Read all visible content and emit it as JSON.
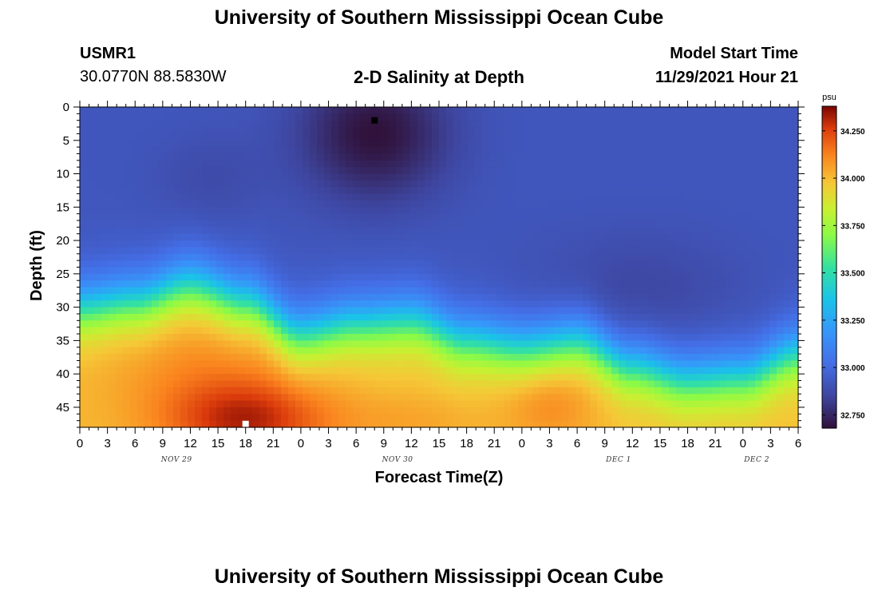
{
  "header": {
    "title": "University of Southern Mississippi Ocean Cube",
    "station_id": "USMR1",
    "station_coords": "30.0770N  88.5830W",
    "plot_title": "2-D Salinity at Depth",
    "model_start_label": "Model Start Time",
    "model_start_value": "11/29/2021 Hour 21"
  },
  "footer": {
    "title": "University of Southern Mississippi Ocean Cube"
  },
  "chart_data": {
    "type": "heatmap",
    "xlabel": "Forecast Time(Z)",
    "ylabel": "Depth (ft)",
    "x_tick_labels": [
      "0",
      "3",
      "6",
      "9",
      "12",
      "15",
      "18",
      "21",
      "0",
      "3",
      "6",
      "9",
      "12",
      "15",
      "18",
      "21",
      "0",
      "3",
      "6",
      "9",
      "12",
      "15",
      "18",
      "21",
      "0",
      "3",
      "6"
    ],
    "date_labels": [
      {
        "text": "NOV 29",
        "at_tick": 3.5
      },
      {
        "text": "NOV 30",
        "at_tick": 11.5
      },
      {
        "text": "DEC 1",
        "at_tick": 19.5
      },
      {
        "text": "DEC 2",
        "at_tick": 24.5
      }
    ],
    "xlim": [
      0,
      78
    ],
    "y_ticks": [
      0,
      5,
      10,
      15,
      20,
      25,
      30,
      35,
      40,
      45
    ],
    "ylim": [
      0,
      48
    ],
    "y_inverted": true,
    "colorbar": {
      "unit": "psu",
      "ticks": [
        32.75,
        33.0,
        33.25,
        33.5,
        33.75,
        34.0,
        34.25
      ],
      "tick_labels": [
        "32.750",
        "33.000",
        "33.250",
        "33.500",
        "33.750",
        "34.000",
        "34.250"
      ],
      "range": [
        32.68,
        34.38
      ],
      "colormap": "turbo"
    },
    "halocline_depth_ft": {
      "hours": [
        0,
        6,
        12,
        18,
        24,
        30,
        36,
        42,
        48,
        54,
        60,
        66,
        72,
        78
      ],
      "values": [
        30,
        29,
        26.5,
        29,
        34,
        32.5,
        32,
        35,
        36,
        35,
        39,
        41,
        40.5,
        37
      ]
    },
    "markers": [
      {
        "hour": 32,
        "depth_ft": 2,
        "color": "#000000"
      },
      {
        "hour": 18,
        "depth_ft": 47.5,
        "color": "#ffffff"
      }
    ]
  }
}
